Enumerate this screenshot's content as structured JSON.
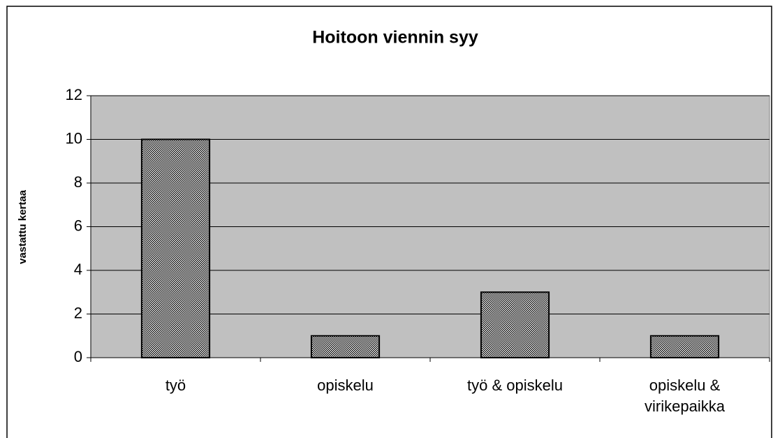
{
  "chart_data": {
    "type": "bar",
    "title": "Hoitoon viennin syy",
    "ylabel": "vastattu kertaa",
    "categories": [
      "työ",
      "opiskelu",
      "työ & opiskelu",
      "opiskelu & virikepaikka"
    ],
    "values": [
      10,
      1,
      3,
      1
    ],
    "color": "#000000",
    "ylim": [
      0,
      12
    ],
    "yticks": [
      0,
      2,
      4,
      6,
      8,
      10,
      12
    ],
    "grid": true
  }
}
